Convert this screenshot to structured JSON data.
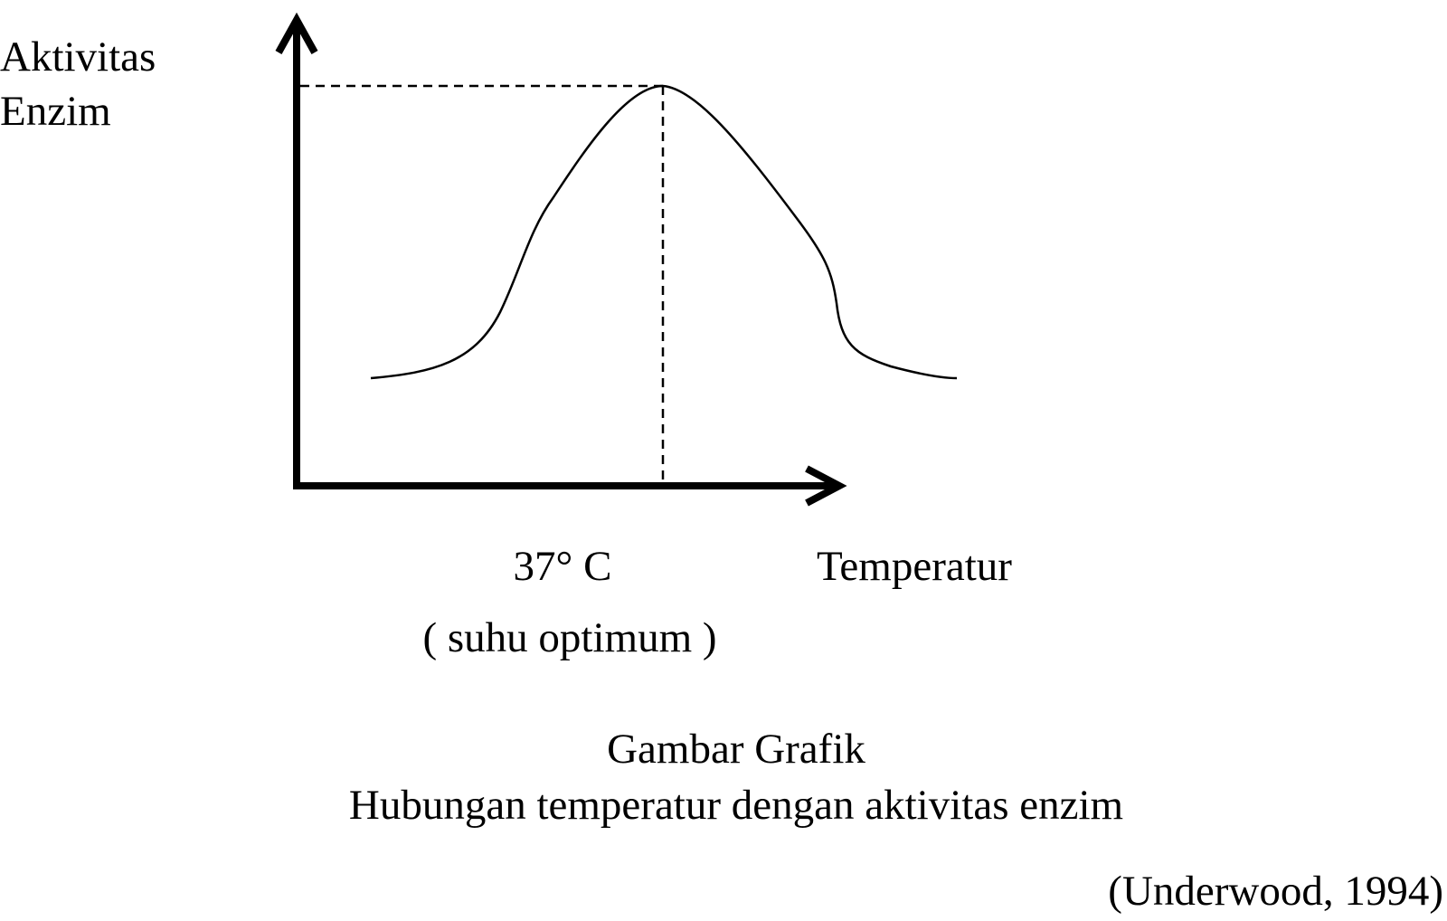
{
  "axis_labels": {
    "y": [
      "Aktivitas",
      "Enzim"
    ],
    "x": "Temperatur"
  },
  "optimum": {
    "value_label": "37° C",
    "note": "( suhu optimum )"
  },
  "caption": {
    "title": "Gambar Grafik",
    "subtitle": "Hubungan temperatur dengan aktivitas enzim"
  },
  "source": "(Underwood, 1994)"
}
